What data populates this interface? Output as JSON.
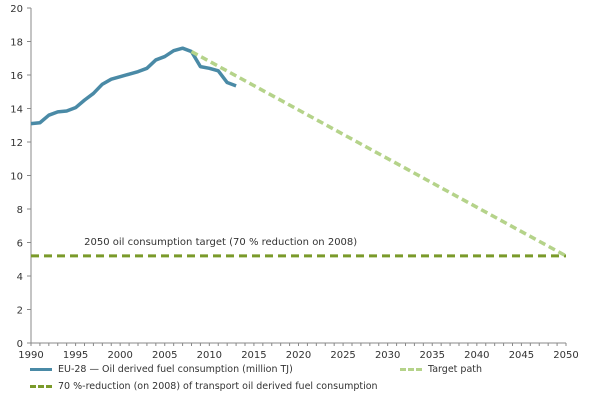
{
  "chart_data": {
    "type": "line",
    "xlim": [
      1990,
      2050
    ],
    "ylim": [
      0,
      20
    ],
    "xticks": [
      1990,
      1995,
      2000,
      2005,
      2010,
      2015,
      2020,
      2025,
      2030,
      2035,
      2040,
      2045,
      2050
    ],
    "yticks": [
      0,
      2,
      4,
      6,
      8,
      10,
      12,
      14,
      16,
      18,
      20
    ],
    "annotation": "2050 oil consumption target (70 % reduction on 2008)",
    "series": [
      {
        "name": "EU-28 — Oil derived fuel consumption (million TJ)",
        "color": "#4a8aa6",
        "style": "solid",
        "x": [
          1990,
          1991,
          1992,
          1993,
          1994,
          1995,
          1996,
          1997,
          1998,
          1999,
          2000,
          2001,
          2002,
          2003,
          2004,
          2005,
          2006,
          2007,
          2008,
          2009,
          2010,
          2011,
          2012,
          2013
        ],
        "y": [
          13.1,
          13.15,
          13.6,
          13.8,
          13.85,
          14.05,
          14.5,
          14.9,
          15.45,
          15.75,
          15.9,
          16.05,
          16.2,
          16.4,
          16.9,
          17.1,
          17.45,
          17.6,
          17.4,
          16.5,
          16.4,
          16.25,
          15.55,
          15.35
        ]
      },
      {
        "name": "Target path",
        "color": "#b5d38a",
        "style": "dashed",
        "x": [
          2008,
          2050
        ],
        "y": [
          17.4,
          5.2
        ]
      },
      {
        "name": "70 %-reduction (on 2008) of transport oil derived fuel consumption",
        "color": "#7a9a2a",
        "style": "dashed",
        "x": [
          1990,
          2050
        ],
        "y": [
          5.2,
          5.2
        ]
      }
    ]
  }
}
